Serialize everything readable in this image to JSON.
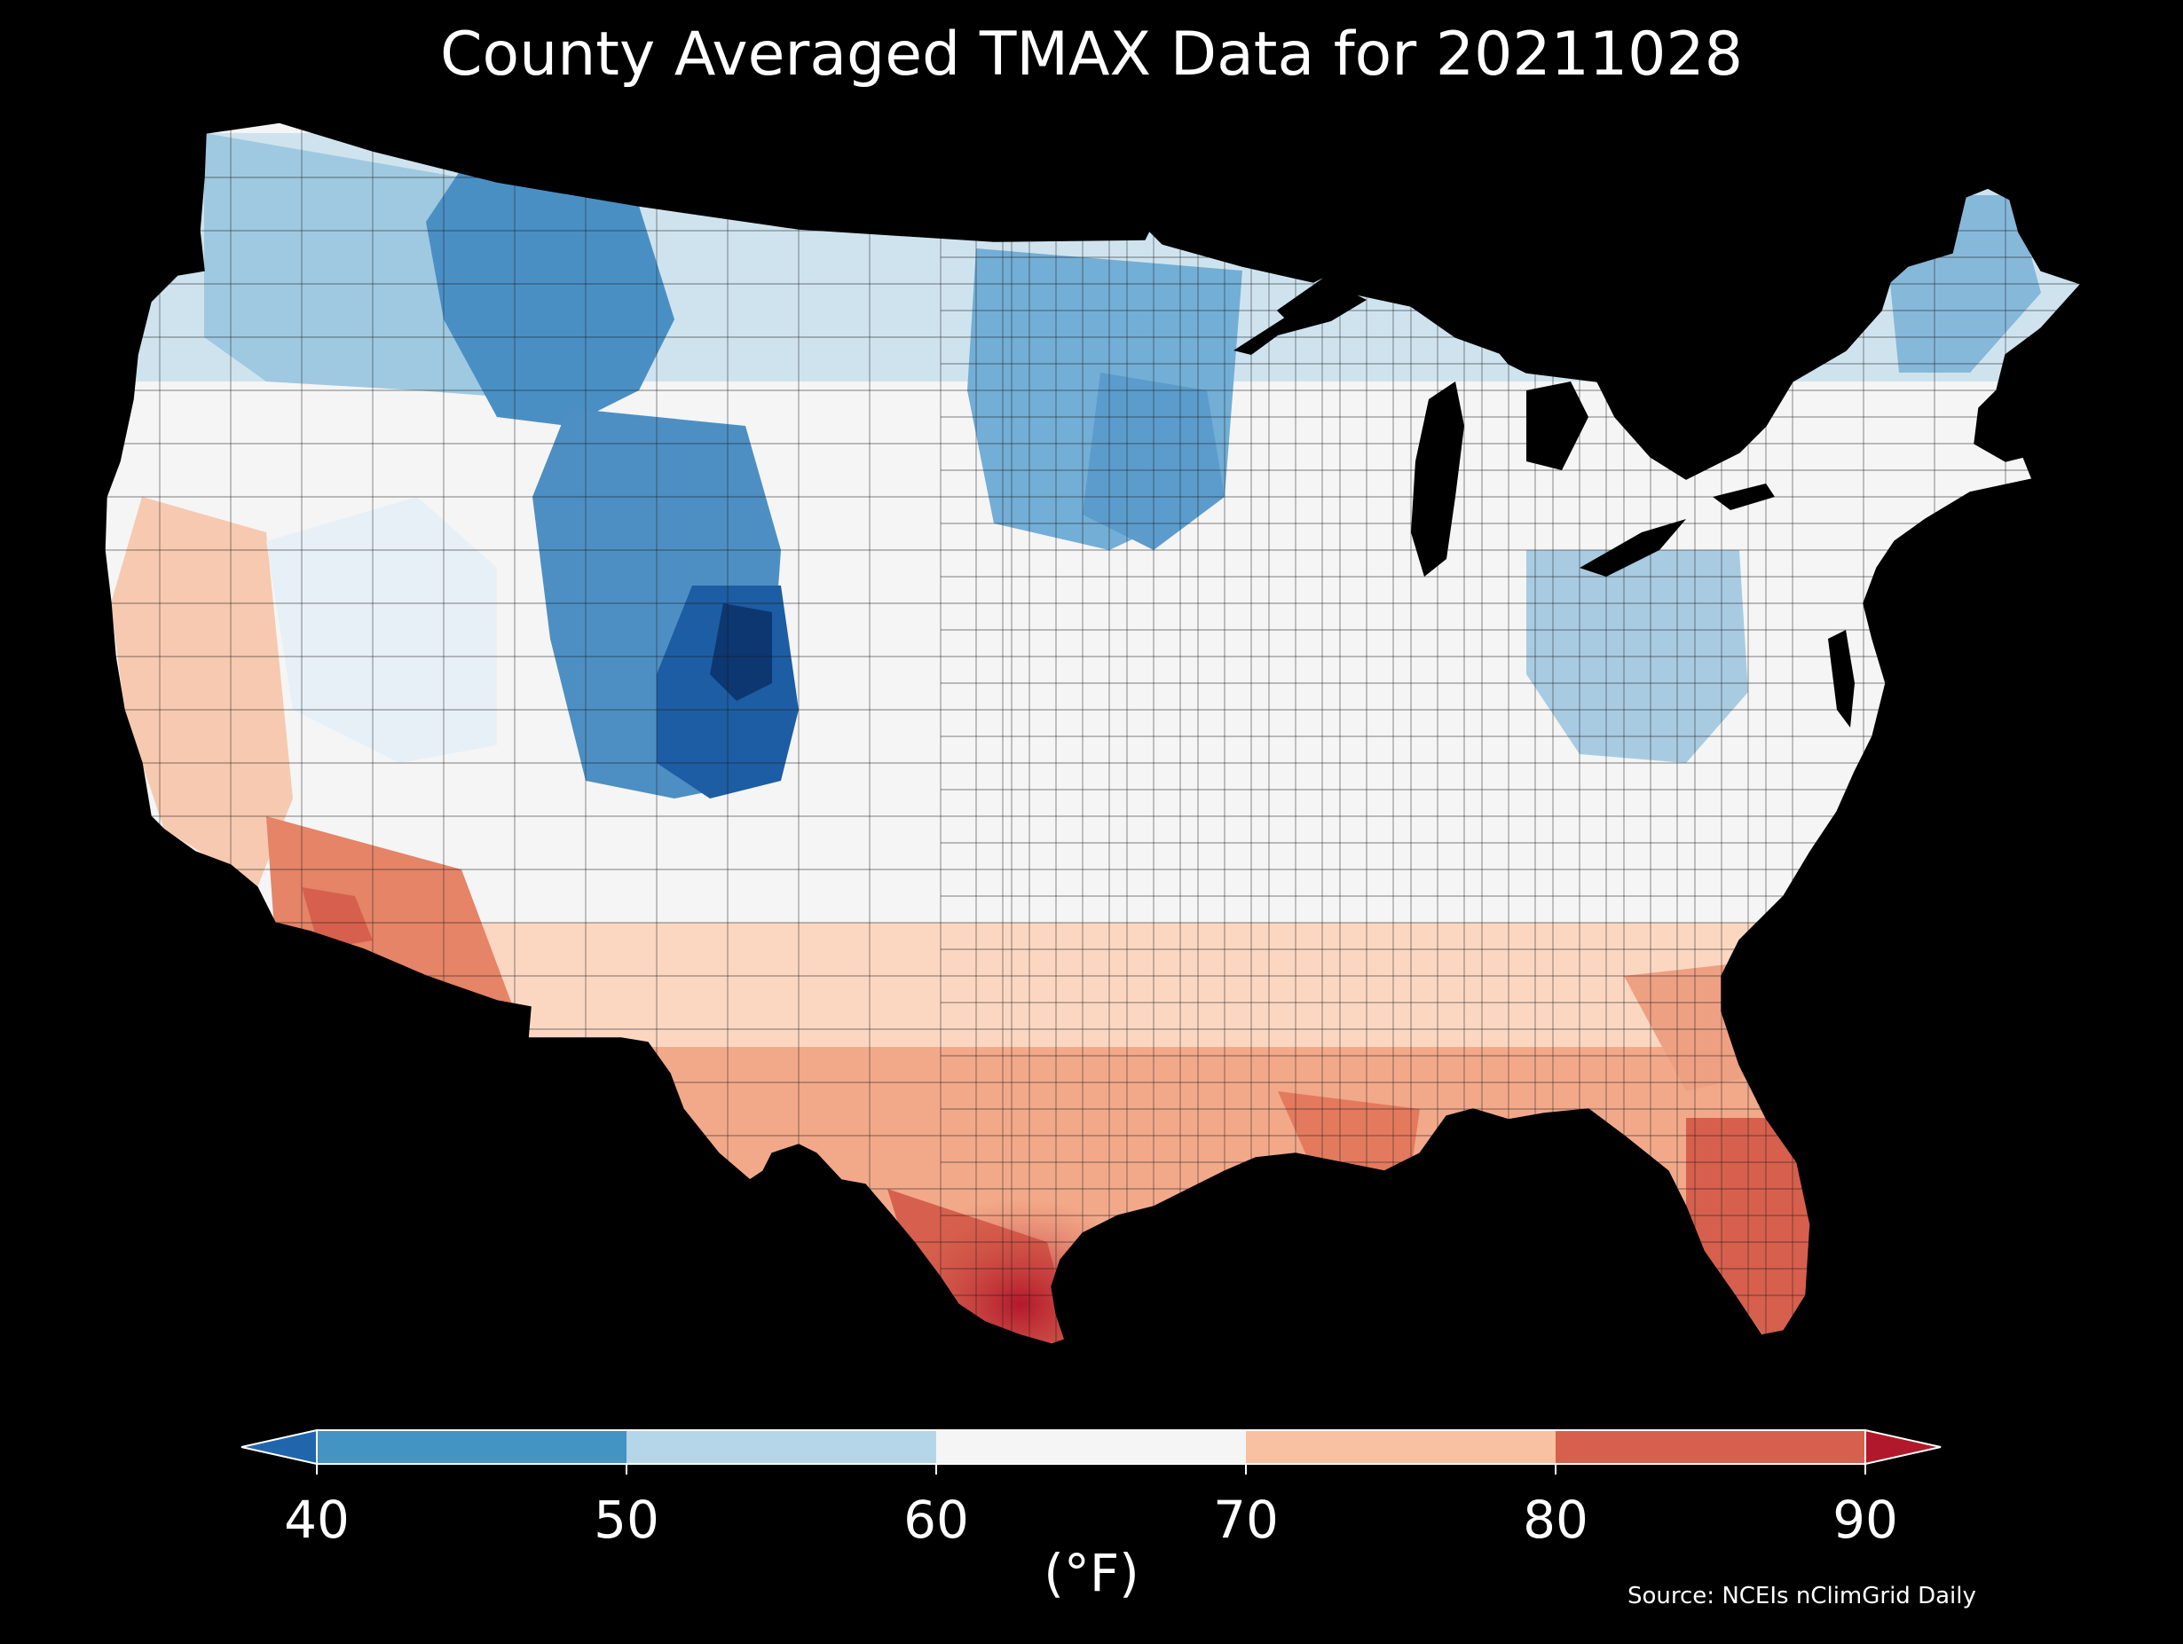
{
  "title": "County Averaged TMAX Data for 20211028",
  "colorbar": {
    "unit": "(°F)",
    "ticks": [
      "40",
      "50",
      "60",
      "70",
      "80",
      "90"
    ],
    "extend": "both",
    "bins": [
      {
        "range": "<40",
        "color": "#2166ac"
      },
      {
        "range": "40-50",
        "color": "#4393c3"
      },
      {
        "range": "50-60",
        "color": "#b5d6e8"
      },
      {
        "range": "60-70",
        "color": "#f5f5f5"
      },
      {
        "range": "70-80",
        "color": "#f8c1a2"
      },
      {
        "range": "80-90",
        "color": "#d6604d"
      },
      {
        "range": ">90",
        "color": "#b2182b"
      }
    ]
  },
  "source": "Source: NCEIs nClimGrid Daily",
  "map": {
    "region": "Contiguous United States",
    "variable": "TMAX",
    "background": "#000000",
    "regional_pattern": [
      {
        "region": "Northern Rockies / Montana",
        "bin": "40-50"
      },
      {
        "region": "Wyoming / Colorado Front Range",
        "bin": "<40"
      },
      {
        "region": "Pacific Northwest",
        "bin": "50-60"
      },
      {
        "region": "Northern Plains / Minnesota",
        "bin": "40-50"
      },
      {
        "region": "Ohio Valley / West Virginia",
        "bin": "50-60"
      },
      {
        "region": "New England",
        "bin": "50-60"
      },
      {
        "region": "Great Basin",
        "bin": "50-60"
      },
      {
        "region": "Central Plains / Midwest",
        "bin": "60-70"
      },
      {
        "region": "California coast / Desert Southwest",
        "bin": "70-80"
      },
      {
        "region": "Southern Arizona / SE California",
        "bin": "80-90"
      },
      {
        "region": "Southeast / Gulf Coast",
        "bin": "70-80"
      },
      {
        "region": "South Texas / South Florida",
        "bin": ">90"
      }
    ]
  }
}
